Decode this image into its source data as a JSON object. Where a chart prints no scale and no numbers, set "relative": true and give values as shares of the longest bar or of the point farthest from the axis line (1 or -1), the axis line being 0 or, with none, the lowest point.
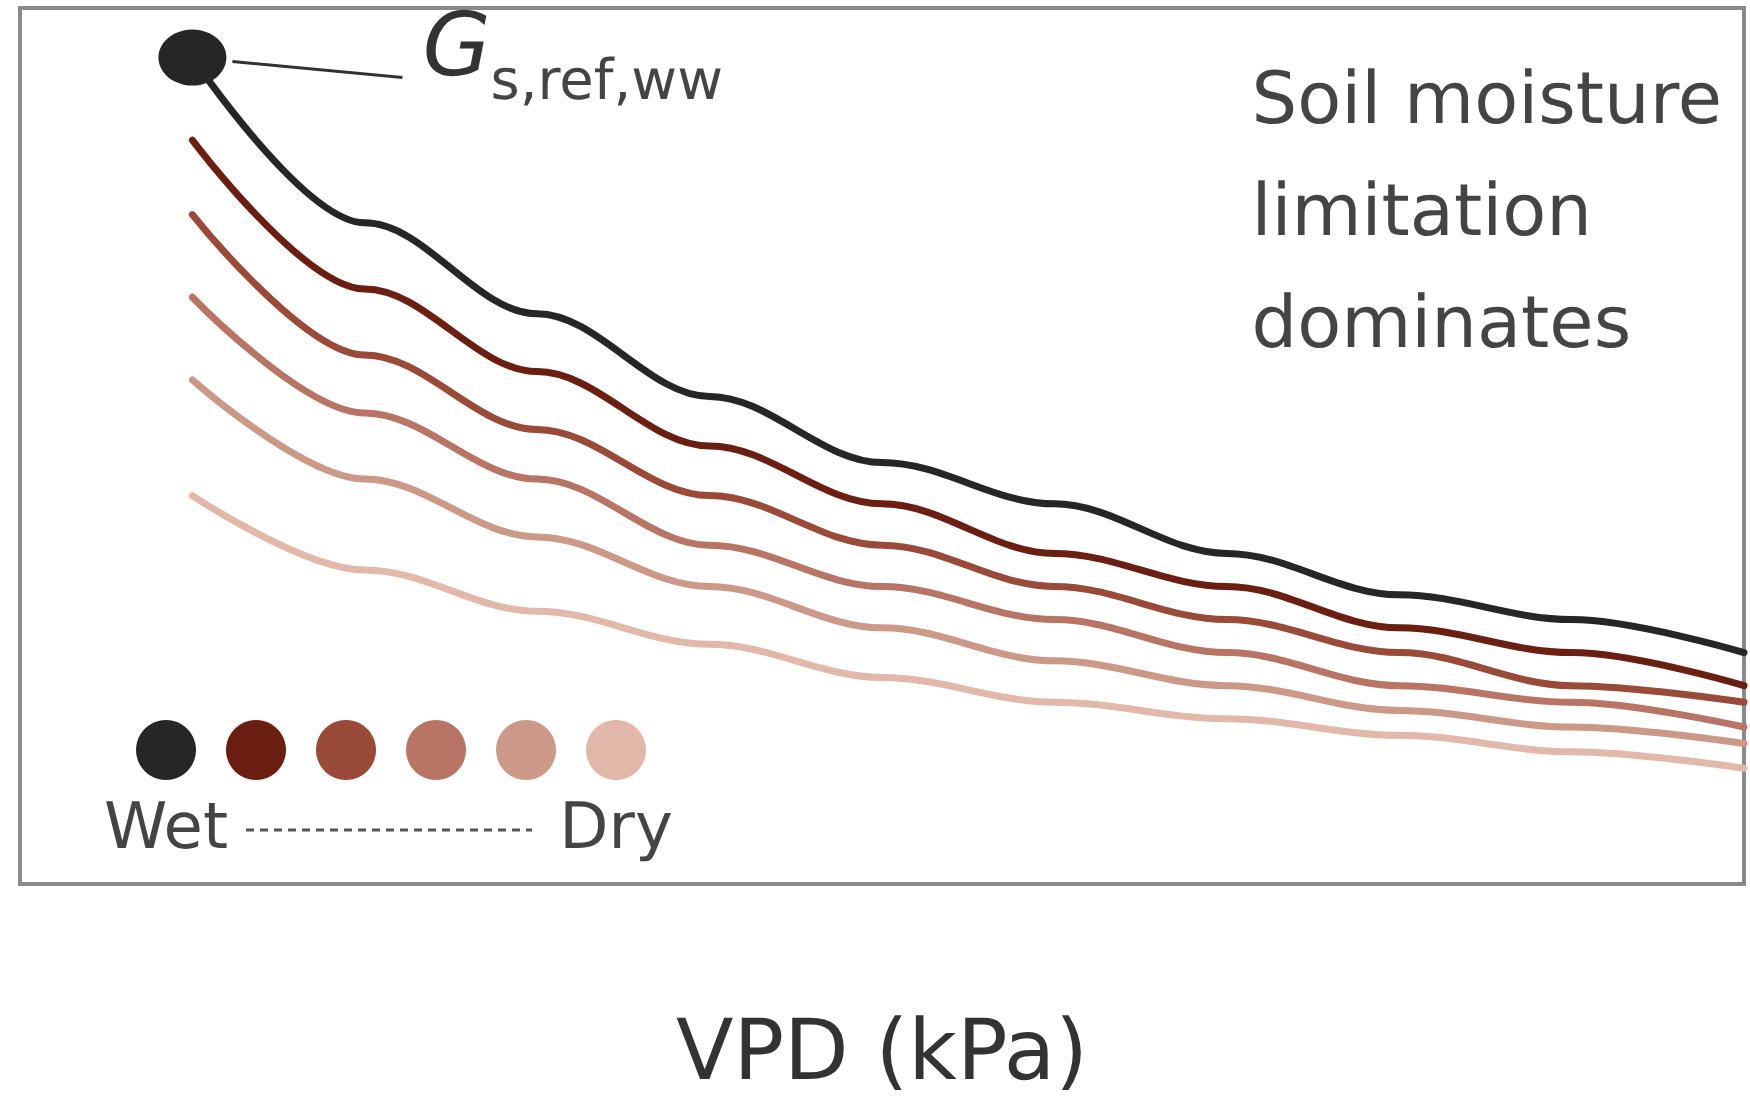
{
  "chart_data": {
    "type": "line",
    "relative": true,
    "xlabel": "VPD (kPa)",
    "annotations": [
      "G$_{s,ref,ww}$",
      "Soil moisture\nlimitation\ndominates"
    ],
    "legend": "bottom left",
    "grid": false,
    "categories": [
      null,
      null,
      null,
      null,
      null,
      null,
      null,
      null,
      null,
      null,
      null
    ],
    "series": [
      {
        "name": "Wet",
        "color": "#262626",
        "values": [
          null,
          1.0,
          0.8,
          0.69,
          0.59,
          0.51,
          0.46,
          0.4,
          0.35,
          0.32,
          0.28
        ]
      },
      {
        "color": "#6b1f12",
        "values": [
          null,
          0.9,
          0.72,
          0.62,
          0.53,
          0.46,
          0.4,
          0.36,
          0.31,
          0.28,
          0.24
        ]
      },
      {
        "color": "#9a4a38",
        "values": [
          null,
          0.81,
          0.64,
          0.55,
          0.47,
          0.41,
          0.36,
          0.32,
          0.28,
          0.24,
          0.22
        ]
      },
      {
        "color": "#b87565",
        "values": [
          null,
          0.71,
          0.57,
          0.49,
          0.41,
          0.36,
          0.32,
          0.28,
          0.24,
          0.22,
          0.19
        ]
      },
      {
        "color": "#cc9888",
        "values": [
          null,
          0.61,
          0.49,
          0.42,
          0.36,
          0.31,
          0.27,
          0.24,
          0.21,
          0.19,
          0.17
        ]
      },
      {
        "name": "Dry",
        "color": "#e2b8aa",
        "values": [
          null,
          0.47,
          0.38,
          0.33,
          0.29,
          0.25,
          0.22,
          0.2,
          0.18,
          0.16,
          0.14
        ]
      }
    ]
  }
}
